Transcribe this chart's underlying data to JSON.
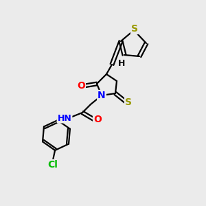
{
  "bg_color": "#ebebeb",
  "bond_color": "#000000",
  "atom_colors": {
    "S": "#999900",
    "N": "#0000ff",
    "O": "#ff0000",
    "Cl": "#00bb00",
    "C": "#000000",
    "H": "#000000"
  }
}
